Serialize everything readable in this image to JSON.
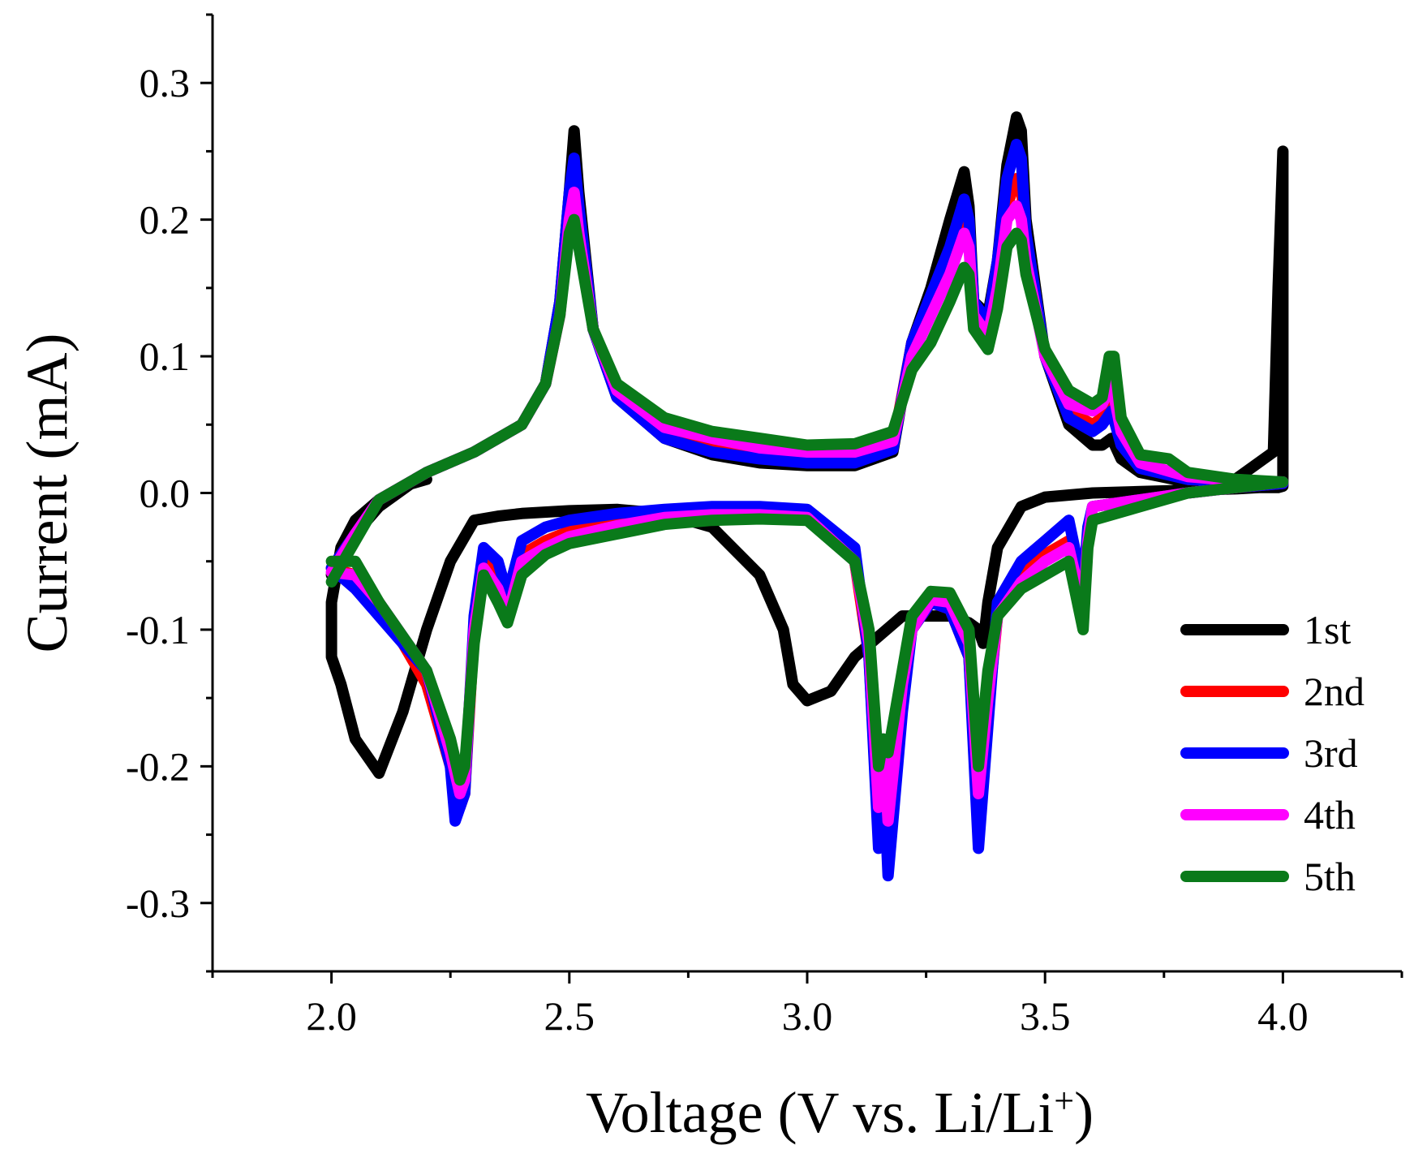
{
  "chart_data": {
    "type": "line",
    "title": "",
    "xlabel": "Voltage (V vs. Li/Li",
    "xlabel_superscript": "+",
    "xlabel_close": ")",
    "ylabel": "Current (mA)",
    "xlim": [
      1.75,
      4.25
    ],
    "ylim": [
      -0.35,
      0.35
    ],
    "xticks": [
      2.0,
      2.5,
      3.0,
      3.5,
      4.0
    ],
    "xtick_labels": [
      "2.0",
      "2.5",
      "3.0",
      "3.5",
      "4.0"
    ],
    "yticks": [
      0.3,
      0.2,
      0.1,
      0.0,
      -0.1,
      -0.2,
      -0.3
    ],
    "ytick_labels": [
      "0.3",
      "0.2",
      "0.1",
      "0.0",
      "-0.1",
      "-0.2",
      "-0.3"
    ],
    "legend_position": "bottom-right",
    "series": [
      {
        "name": "1st",
        "color": "#000000",
        "x": [
          2.0,
          2.05,
          2.1,
          2.2,
          2.3,
          2.4,
          2.45,
          2.48,
          2.5,
          2.51,
          2.52,
          2.55,
          2.6,
          2.7,
          2.8,
          2.9,
          3.0,
          3.1,
          3.18,
          3.22,
          3.26,
          3.3,
          3.33,
          3.34,
          3.35,
          3.38,
          3.4,
          3.42,
          3.44,
          3.45,
          3.46,
          3.5,
          3.55,
          3.6,
          3.62,
          3.64,
          3.66,
          3.7,
          3.8,
          3.9,
          3.98,
          3.99,
          4.0,
          4.0,
          3.99,
          3.95,
          3.9,
          3.8,
          3.7,
          3.6,
          3.5,
          3.45,
          3.4,
          3.38,
          3.37,
          3.36,
          3.34,
          3.3,
          3.2,
          3.1,
          3.05,
          3.0,
          2.97,
          2.95,
          2.9,
          2.8,
          2.7,
          2.6,
          2.5,
          2.4,
          2.35,
          2.3,
          2.25,
          2.2,
          2.15,
          2.1,
          2.05,
          2.02,
          2.0,
          2.0,
          2.02,
          2.05,
          2.1,
          2.15,
          2.2
        ],
        "y": [
          -0.06,
          -0.03,
          -0.01,
          0.015,
          0.03,
          0.05,
          0.08,
          0.14,
          0.22,
          0.265,
          0.22,
          0.12,
          0.07,
          0.04,
          0.028,
          0.022,
          0.02,
          0.02,
          0.03,
          0.11,
          0.15,
          0.2,
          0.235,
          0.21,
          0.14,
          0.13,
          0.17,
          0.24,
          0.275,
          0.265,
          0.2,
          0.1,
          0.05,
          0.035,
          0.035,
          0.04,
          0.025,
          0.015,
          0.008,
          0.01,
          0.03,
          0.15,
          0.25,
          0.005,
          0.004,
          0.004,
          0.003,
          0.002,
          0.001,
          0.0,
          -0.003,
          -0.01,
          -0.04,
          -0.08,
          -0.11,
          -0.1,
          -0.095,
          -0.09,
          -0.09,
          -0.12,
          -0.145,
          -0.152,
          -0.14,
          -0.1,
          -0.06,
          -0.025,
          -0.015,
          -0.012,
          -0.013,
          -0.015,
          -0.017,
          -0.02,
          -0.05,
          -0.1,
          -0.16,
          -0.205,
          -0.18,
          -0.14,
          -0.12,
          -0.08,
          -0.04,
          -0.02,
          -0.005,
          0.005,
          0.01
        ]
      },
      {
        "name": "2nd",
        "color": "#ff0000",
        "x": [
          2.0,
          2.05,
          2.1,
          2.2,
          2.3,
          2.4,
          2.45,
          2.48,
          2.5,
          2.51,
          2.52,
          2.55,
          2.6,
          2.7,
          2.8,
          2.9,
          3.0,
          3.1,
          3.18,
          3.22,
          3.26,
          3.3,
          3.33,
          3.34,
          3.35,
          3.38,
          3.4,
          3.42,
          3.44,
          3.45,
          3.46,
          3.5,
          3.55,
          3.6,
          3.62,
          3.64,
          3.66,
          3.7,
          3.8,
          3.9,
          4.0,
          4.0,
          3.9,
          3.8,
          3.7,
          3.6,
          3.59,
          3.58,
          3.55,
          3.5,
          3.45,
          3.4,
          3.38,
          3.36,
          3.34,
          3.3,
          3.26,
          3.22,
          3.2,
          3.17,
          3.16,
          3.15,
          3.13,
          3.1,
          3.0,
          2.9,
          2.8,
          2.7,
          2.6,
          2.5,
          2.45,
          2.4,
          2.37,
          2.35,
          2.32,
          2.3,
          2.28,
          2.27,
          2.25,
          2.2,
          2.1,
          2.05,
          2.0
        ],
        "y": [
          -0.055,
          -0.03,
          -0.005,
          0.015,
          0.03,
          0.05,
          0.08,
          0.13,
          0.2,
          0.23,
          0.2,
          0.12,
          0.075,
          0.045,
          0.035,
          0.028,
          0.025,
          0.025,
          0.035,
          0.11,
          0.14,
          0.17,
          0.2,
          0.19,
          0.13,
          0.12,
          0.16,
          0.21,
          0.23,
          0.225,
          0.18,
          0.1,
          0.06,
          0.05,
          0.055,
          0.07,
          0.04,
          0.02,
          0.01,
          0.008,
          0.007,
          0.007,
          0.004,
          0.0,
          -0.005,
          -0.01,
          -0.03,
          -0.08,
          -0.035,
          -0.045,
          -0.06,
          -0.09,
          -0.16,
          -0.24,
          -0.12,
          -0.085,
          -0.08,
          -0.1,
          -0.15,
          -0.25,
          -0.19,
          -0.25,
          -0.12,
          -0.05,
          -0.015,
          -0.012,
          -0.012,
          -0.015,
          -0.02,
          -0.028,
          -0.035,
          -0.045,
          -0.085,
          -0.06,
          -0.05,
          -0.1,
          -0.22,
          -0.23,
          -0.2,
          -0.14,
          -0.08,
          -0.06,
          -0.055
        ]
      },
      {
        "name": "3rd",
        "color": "#0000ff",
        "x": [
          2.0,
          2.05,
          2.1,
          2.2,
          2.3,
          2.4,
          2.45,
          2.48,
          2.5,
          2.51,
          2.52,
          2.55,
          2.6,
          2.7,
          2.8,
          2.9,
          3.0,
          3.1,
          3.18,
          3.22,
          3.26,
          3.3,
          3.33,
          3.34,
          3.35,
          3.38,
          3.4,
          3.42,
          3.44,
          3.45,
          3.46,
          3.5,
          3.55,
          3.6,
          3.62,
          3.64,
          3.66,
          3.7,
          3.8,
          3.9,
          4.0,
          4.0,
          3.9,
          3.8,
          3.7,
          3.6,
          3.59,
          3.58,
          3.55,
          3.5,
          3.45,
          3.4,
          3.38,
          3.36,
          3.34,
          3.3,
          3.26,
          3.22,
          3.2,
          3.17,
          3.16,
          3.15,
          3.13,
          3.1,
          3.0,
          2.9,
          2.8,
          2.7,
          2.6,
          2.5,
          2.45,
          2.4,
          2.37,
          2.35,
          2.32,
          2.3,
          2.28,
          2.26,
          2.25,
          2.2,
          2.1,
          2.05,
          2.0
        ],
        "y": [
          -0.055,
          -0.03,
          -0.005,
          0.015,
          0.03,
          0.05,
          0.08,
          0.14,
          0.22,
          0.245,
          0.21,
          0.12,
          0.07,
          0.04,
          0.03,
          0.025,
          0.022,
          0.022,
          0.032,
          0.11,
          0.145,
          0.18,
          0.215,
          0.2,
          0.14,
          0.125,
          0.17,
          0.23,
          0.255,
          0.245,
          0.19,
          0.1,
          0.055,
          0.045,
          0.05,
          0.06,
          0.035,
          0.018,
          0.01,
          0.008,
          0.007,
          0.007,
          0.004,
          0.0,
          -0.005,
          -0.01,
          -0.025,
          -0.07,
          -0.02,
          -0.035,
          -0.05,
          -0.08,
          -0.17,
          -0.26,
          -0.12,
          -0.085,
          -0.08,
          -0.1,
          -0.16,
          -0.28,
          -0.2,
          -0.26,
          -0.12,
          -0.04,
          -0.012,
          -0.01,
          -0.01,
          -0.012,
          -0.015,
          -0.02,
          -0.025,
          -0.035,
          -0.075,
          -0.05,
          -0.04,
          -0.09,
          -0.22,
          -0.24,
          -0.2,
          -0.13,
          -0.09,
          -0.07,
          -0.055
        ]
      },
      {
        "name": "4th",
        "color": "#ff00ff",
        "x": [
          2.0,
          2.05,
          2.1,
          2.2,
          2.3,
          2.4,
          2.45,
          2.48,
          2.5,
          2.51,
          2.52,
          2.55,
          2.6,
          2.7,
          2.8,
          2.9,
          3.0,
          3.1,
          3.18,
          3.22,
          3.26,
          3.3,
          3.33,
          3.34,
          3.35,
          3.38,
          3.4,
          3.42,
          3.44,
          3.45,
          3.46,
          3.5,
          3.55,
          3.6,
          3.62,
          3.64,
          3.66,
          3.7,
          3.8,
          3.9,
          4.0,
          4.0,
          3.9,
          3.8,
          3.7,
          3.6,
          3.59,
          3.58,
          3.55,
          3.5,
          3.45,
          3.4,
          3.38,
          3.36,
          3.34,
          3.3,
          3.26,
          3.22,
          3.2,
          3.17,
          3.16,
          3.15,
          3.13,
          3.1,
          3.0,
          2.9,
          2.8,
          2.7,
          2.6,
          2.5,
          2.45,
          2.4,
          2.37,
          2.35,
          2.32,
          2.3,
          2.28,
          2.27,
          2.25,
          2.2,
          2.1,
          2.05,
          2.0
        ],
        "y": [
          -0.058,
          -0.03,
          -0.005,
          0.015,
          0.03,
          0.05,
          0.08,
          0.13,
          0.2,
          0.22,
          0.19,
          0.12,
          0.075,
          0.048,
          0.04,
          0.033,
          0.03,
          0.03,
          0.038,
          0.1,
          0.13,
          0.16,
          0.19,
          0.18,
          0.13,
          0.115,
          0.15,
          0.2,
          0.21,
          0.2,
          0.17,
          0.1,
          0.065,
          0.06,
          0.065,
          0.08,
          0.045,
          0.022,
          0.012,
          0.009,
          0.008,
          0.008,
          0.004,
          0.0,
          -0.005,
          -0.01,
          -0.035,
          -0.085,
          -0.04,
          -0.05,
          -0.065,
          -0.09,
          -0.15,
          -0.22,
          -0.11,
          -0.08,
          -0.078,
          -0.1,
          -0.14,
          -0.24,
          -0.18,
          -0.23,
          -0.11,
          -0.05,
          -0.018,
          -0.016,
          -0.016,
          -0.018,
          -0.024,
          -0.032,
          -0.04,
          -0.05,
          -0.09,
          -0.07,
          -0.055,
          -0.1,
          -0.21,
          -0.22,
          -0.19,
          -0.13,
          -0.08,
          -0.06,
          -0.058
        ]
      },
      {
        "name": "5th",
        "color": "#0a7a1a",
        "x": [
          2.0,
          2.05,
          2.1,
          2.2,
          2.3,
          2.4,
          2.45,
          2.48,
          2.5,
          2.51,
          2.52,
          2.55,
          2.6,
          2.7,
          2.8,
          2.9,
          3.0,
          3.1,
          3.18,
          3.22,
          3.26,
          3.3,
          3.33,
          3.34,
          3.35,
          3.38,
          3.4,
          3.42,
          3.44,
          3.45,
          3.46,
          3.5,
          3.55,
          3.6,
          3.62,
          3.635,
          3.645,
          3.66,
          3.7,
          3.76,
          3.8,
          3.9,
          4.0,
          4.0,
          3.9,
          3.8,
          3.7,
          3.6,
          3.59,
          3.58,
          3.55,
          3.5,
          3.45,
          3.4,
          3.38,
          3.36,
          3.34,
          3.3,
          3.26,
          3.22,
          3.2,
          3.17,
          3.16,
          3.15,
          3.13,
          3.1,
          3.0,
          2.9,
          2.8,
          2.7,
          2.6,
          2.5,
          2.45,
          2.4,
          2.37,
          2.35,
          2.32,
          2.3,
          2.28,
          2.27,
          2.25,
          2.2,
          2.1,
          2.05,
          2.0
        ],
        "y": [
          -0.065,
          -0.035,
          -0.005,
          0.015,
          0.03,
          0.05,
          0.08,
          0.13,
          0.19,
          0.2,
          0.18,
          0.12,
          0.08,
          0.055,
          0.045,
          0.04,
          0.035,
          0.036,
          0.045,
          0.09,
          0.11,
          0.14,
          0.165,
          0.16,
          0.12,
          0.105,
          0.135,
          0.18,
          0.19,
          0.185,
          0.16,
          0.105,
          0.075,
          0.065,
          0.07,
          0.1,
          0.1,
          0.055,
          0.028,
          0.025,
          0.015,
          0.01,
          0.008,
          0.008,
          0.004,
          0.0,
          -0.01,
          -0.02,
          -0.04,
          -0.1,
          -0.05,
          -0.06,
          -0.07,
          -0.09,
          -0.13,
          -0.2,
          -0.1,
          -0.073,
          -0.072,
          -0.09,
          -0.13,
          -0.19,
          -0.18,
          -0.2,
          -0.1,
          -0.05,
          -0.02,
          -0.019,
          -0.02,
          -0.023,
          -0.03,
          -0.037,
          -0.045,
          -0.06,
          -0.095,
          -0.08,
          -0.06,
          -0.11,
          -0.2,
          -0.21,
          -0.18,
          -0.13,
          -0.08,
          -0.05,
          -0.05
        ]
      }
    ]
  }
}
